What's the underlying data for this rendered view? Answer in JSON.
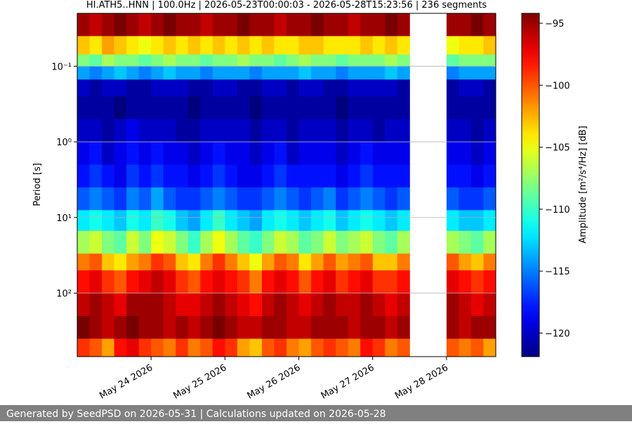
{
  "chart_data": {
    "type": "heatmap",
    "title": "HI.ATH5..HNN | 100.0Hz | 2026-05-23T00:00:03 - 2026-05-28T15:23:56 | 236 segments",
    "y_label": "Period [s]",
    "colorbar_label": "Amplitude [m²/s⁴/Hz] [dB]",
    "colormap": "jet",
    "y_log": true,
    "y_inverted": true,
    "grid": true,
    "xlim": [
      "2026-05-23T00:00",
      "2026-05-28T16:00"
    ],
    "xticks": [
      {
        "value": "2026-05-24T00:00",
        "label": "May 24 2026"
      },
      {
        "value": "2026-05-25T00:00",
        "label": "May 25 2026"
      },
      {
        "value": "2026-05-26T00:00",
        "label": "May 26 2026"
      },
      {
        "value": "2026-05-27T00:00",
        "label": "May 27 2026"
      },
      {
        "value": "2026-05-28T00:00",
        "label": "May 28 2026"
      }
    ],
    "ylim": [
      0.02,
      690
    ],
    "yticks": [
      {
        "value": 0.1,
        "label": "10⁻¹"
      },
      {
        "value": 1,
        "label": "10⁰"
      },
      {
        "value": 10,
        "label": "10¹"
      },
      {
        "value": 100,
        "label": "10²"
      }
    ],
    "clim": [
      -121.9,
      -94.2
    ],
    "cticks": [
      {
        "value": -95,
        "label": "−95"
      },
      {
        "value": -100,
        "label": "−100"
      },
      {
        "value": -105,
        "label": "−105"
      },
      {
        "value": -110,
        "label": "−110"
      },
      {
        "value": -115,
        "label": "−115"
      },
      {
        "value": -120,
        "label": "−120"
      }
    ],
    "y_edges": [
      0.02,
      0.04,
      0.07,
      0.1,
      0.15,
      0.25,
      0.5,
      1,
      2,
      4,
      8,
      15,
      30,
      50,
      100,
      200,
      400,
      690
    ],
    "x": [
      "2026-05-23T00:00",
      "2026-05-23T04:00",
      "2026-05-23T08:00",
      "2026-05-23T12:00",
      "2026-05-23T16:00",
      "2026-05-23T20:00",
      "2026-05-24T00:00",
      "2026-05-24T04:00",
      "2026-05-24T08:00",
      "2026-05-24T12:00",
      "2026-05-24T16:00",
      "2026-05-24T20:00",
      "2026-05-25T00:00",
      "2026-05-25T04:00",
      "2026-05-25T08:00",
      "2026-05-25T12:00",
      "2026-05-25T16:00",
      "2026-05-25T20:00",
      "2026-05-26T00:00",
      "2026-05-26T04:00",
      "2026-05-26T08:00",
      "2026-05-26T12:00",
      "2026-05-26T16:00",
      "2026-05-26T20:00",
      "2026-05-27T00:00",
      "2026-05-27T04:00",
      "2026-05-27T08:00",
      "2026-05-27T12:00",
      "2026-05-27T16:00",
      "2026-05-27T20:00",
      "2026-05-28T00:00",
      "2026-05-28T04:00",
      "2026-05-28T08:00",
      "2026-05-28T12:00"
    ],
    "z": [
      [
        -95,
        -103,
        -108,
        -114,
        -120,
        -121,
        -120,
        -119,
        -118,
        -116,
        -112,
        -107,
        -101,
        -98,
        -96,
        -94,
        -99
      ],
      [
        -96,
        -104,
        -109,
        -115,
        -121,
        -121,
        -120,
        -118,
        -117,
        -115,
        -111,
        -106,
        -100,
        -97,
        -95,
        -95,
        -100
      ],
      [
        -95,
        -102,
        -107,
        -114,
        -120,
        -121,
        -121,
        -120,
        -118,
        -116,
        -112,
        -108,
        -103,
        -99,
        -96,
        -96,
        -102
      ],
      [
        -94,
        -103,
        -108,
        -113,
        -120,
        -122,
        -120,
        -119,
        -119,
        -117,
        -113,
        -109,
        -104,
        -100,
        -97,
        -95,
        -98
      ],
      [
        -95,
        -104,
        -108,
        -114,
        -121,
        -121,
        -119,
        -118,
        -117,
        -115,
        -111,
        -106,
        -102,
        -98,
        -95,
        -94,
        -97
      ],
      [
        -96,
        -105,
        -109,
        -115,
        -121,
        -121,
        -120,
        -119,
        -118,
        -116,
        -112,
        -108,
        -101,
        -97,
        -95,
        -95,
        -99
      ],
      [
        -95,
        -104,
        -108,
        -114,
        -120,
        -121,
        -120,
        -118,
        -117,
        -114,
        -110,
        -105,
        -99,
        -96,
        -95,
        -95,
        -100
      ],
      [
        -94,
        -103,
        -107,
        -113,
        -120,
        -121,
        -120,
        -119,
        -118,
        -116,
        -111,
        -106,
        -100,
        -97,
        -96,
        -96,
        -101
      ],
      [
        -95,
        -104,
        -108,
        -114,
        -120,
        -121,
        -121,
        -119,
        -118,
        -117,
        -113,
        -108,
        -103,
        -99,
        -97,
        -95,
        -99
      ],
      [
        -95,
        -103,
        -108,
        -114,
        -121,
        -122,
        -121,
        -120,
        -119,
        -117,
        -114,
        -110,
        -104,
        -100,
        -97,
        -96,
        -101
      ],
      [
        -96,
        -104,
        -109,
        -115,
        -121,
        -121,
        -120,
        -119,
        -118,
        -116,
        -112,
        -107,
        -101,
        -98,
        -96,
        -95,
        -100
      ],
      [
        -95,
        -103,
        -108,
        -114,
        -120,
        -121,
        -120,
        -118,
        -117,
        -115,
        -110,
        -105,
        -99,
        -97,
        -95,
        -94,
        -98
      ],
      [
        -95,
        -104,
        -108,
        -114,
        -120,
        -121,
        -120,
        -119,
        -118,
        -116,
        -112,
        -107,
        -101,
        -98,
        -96,
        -95,
        -99
      ],
      [
        -94,
        -103,
        -107,
        -114,
        -121,
        -121,
        -120,
        -119,
        -119,
        -117,
        -113,
        -109,
        -103,
        -99,
        -97,
        -96,
        -102
      ],
      [
        -95,
        -104,
        -108,
        -115,
        -121,
        -122,
        -121,
        -120,
        -119,
        -117,
        -114,
        -110,
        -105,
        -101,
        -98,
        -96,
        -103
      ],
      [
        -95,
        -103,
        -108,
        -114,
        -120,
        -121,
        -120,
        -119,
        -118,
        -116,
        -112,
        -108,
        -102,
        -98,
        -96,
        -95,
        -100
      ],
      [
        -96,
        -104,
        -109,
        -114,
        -120,
        -121,
        -120,
        -118,
        -117,
        -115,
        -111,
        -106,
        -100,
        -97,
        -95,
        -95,
        -99
      ],
      [
        -95,
        -104,
        -108,
        -114,
        -121,
        -121,
        -121,
        -120,
        -118,
        -116,
        -112,
        -107,
        -101,
        -98,
        -96,
        -96,
        -101
      ],
      [
        -95,
        -103,
        -107,
        -113,
        -120,
        -121,
        -120,
        -119,
        -118,
        -117,
        -113,
        -109,
        -104,
        -100,
        -97,
        -96,
        -102
      ],
      [
        -94,
        -103,
        -108,
        -114,
        -120,
        -121,
        -120,
        -119,
        -118,
        -116,
        -112,
        -108,
        -102,
        -98,
        -96,
        -95,
        -100
      ],
      [
        -95,
        -104,
        -108,
        -114,
        -121,
        -121,
        -120,
        -119,
        -118,
        -115,
        -111,
        -106,
        -100,
        -97,
        -95,
        -95,
        -99
      ],
      [
        -95,
        -104,
        -109,
        -115,
        -121,
        -122,
        -121,
        -120,
        -119,
        -117,
        -113,
        -108,
        -102,
        -99,
        -96,
        -95,
        -100
      ],
      [
        -96,
        -104,
        -108,
        -114,
        -120,
        -121,
        -120,
        -119,
        -118,
        -116,
        -112,
        -107,
        -101,
        -98,
        -96,
        -96,
        -101
      ],
      [
        -95,
        -103,
        -108,
        -114,
        -120,
        -121,
        -120,
        -118,
        -117,
        -115,
        -111,
        -106,
        -100,
        -97,
        -95,
        -95,
        -98
      ],
      [
        -95,
        -104,
        -108,
        -114,
        -120,
        -121,
        -121,
        -119,
        -118,
        -116,
        -112,
        -108,
        -103,
        -99,
        -96,
        -95,
        -99
      ],
      [
        -94,
        -103,
        -107,
        -113,
        -120,
        -121,
        -120,
        -119,
        -118,
        -117,
        -113,
        -109,
        -103,
        -99,
        -97,
        -96,
        -101
      ],
      [
        -95,
        -104,
        -108,
        -114,
        -121,
        -121,
        -120,
        -119,
        -118,
        -116,
        -112,
        -107,
        -101,
        -98,
        -96,
        -95,
        -100
      ],
      null,
      null,
      null,
      [
        -95,
        -105,
        -109,
        -115,
        -121,
        -121,
        -120,
        -119,
        -118,
        -116,
        -112,
        -107,
        -100,
        -97,
        -95,
        -95,
        -100
      ],
      [
        -95,
        -104,
        -108,
        -114,
        -120,
        -121,
        -120,
        -119,
        -118,
        -117,
        -113,
        -108,
        -102,
        -98,
        -96,
        -96,
        -101
      ],
      [
        -94,
        -104,
        -108,
        -114,
        -120,
        -121,
        -121,
        -120,
        -119,
        -117,
        -113,
        -109,
        -103,
        -99,
        -97,
        -95,
        -100
      ],
      [
        -95,
        -103,
        -108,
        -114,
        -121,
        -121,
        -120,
        -119,
        -118,
        -116,
        -112,
        -107,
        -101,
        -98,
        -96,
        -95,
        -102
      ]
    ]
  },
  "footer": "Generated by SeedPSD on 2026-05-31 | Calculations updated on 2026-05-28"
}
